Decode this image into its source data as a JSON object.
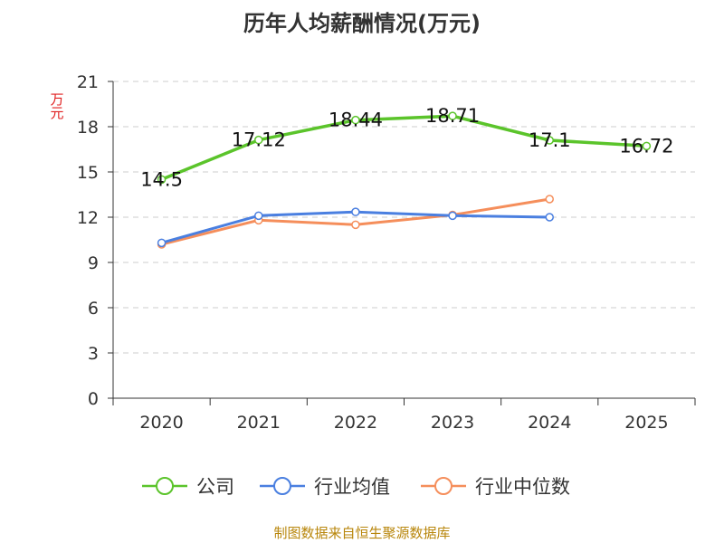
{
  "chart_data": {
    "type": "line",
    "title": "历年人均薪酬情况(万元)",
    "ylabel": "万元",
    "xlabel": "",
    "categories": [
      "2020",
      "2021",
      "2022",
      "2023",
      "2024",
      "2025"
    ],
    "ylim": [
      0,
      21
    ],
    "yticks": [
      0,
      3,
      6,
      9,
      12,
      15,
      18,
      21
    ],
    "grid": true,
    "legend_position": "bottom",
    "series": [
      {
        "name": "公司",
        "color": "#5bc42b",
        "values": [
          14.5,
          17.12,
          18.44,
          18.71,
          17.1,
          16.72
        ],
        "labels": [
          "14.5",
          "17.12",
          "18.44",
          "18.71",
          "17.1",
          "16.72"
        ],
        "show_labels": true
      },
      {
        "name": "行业均值",
        "color": "#4a7fe0",
        "values": [
          10.3,
          12.1,
          12.35,
          12.1,
          12.0,
          null
        ],
        "show_labels": false
      },
      {
        "name": "行业中位数",
        "color": "#f58e5b",
        "values": [
          10.2,
          11.8,
          11.5,
          12.15,
          13.2,
          null
        ],
        "show_labels": false
      }
    ]
  },
  "source": "制图数据来自恒生聚源数据库"
}
